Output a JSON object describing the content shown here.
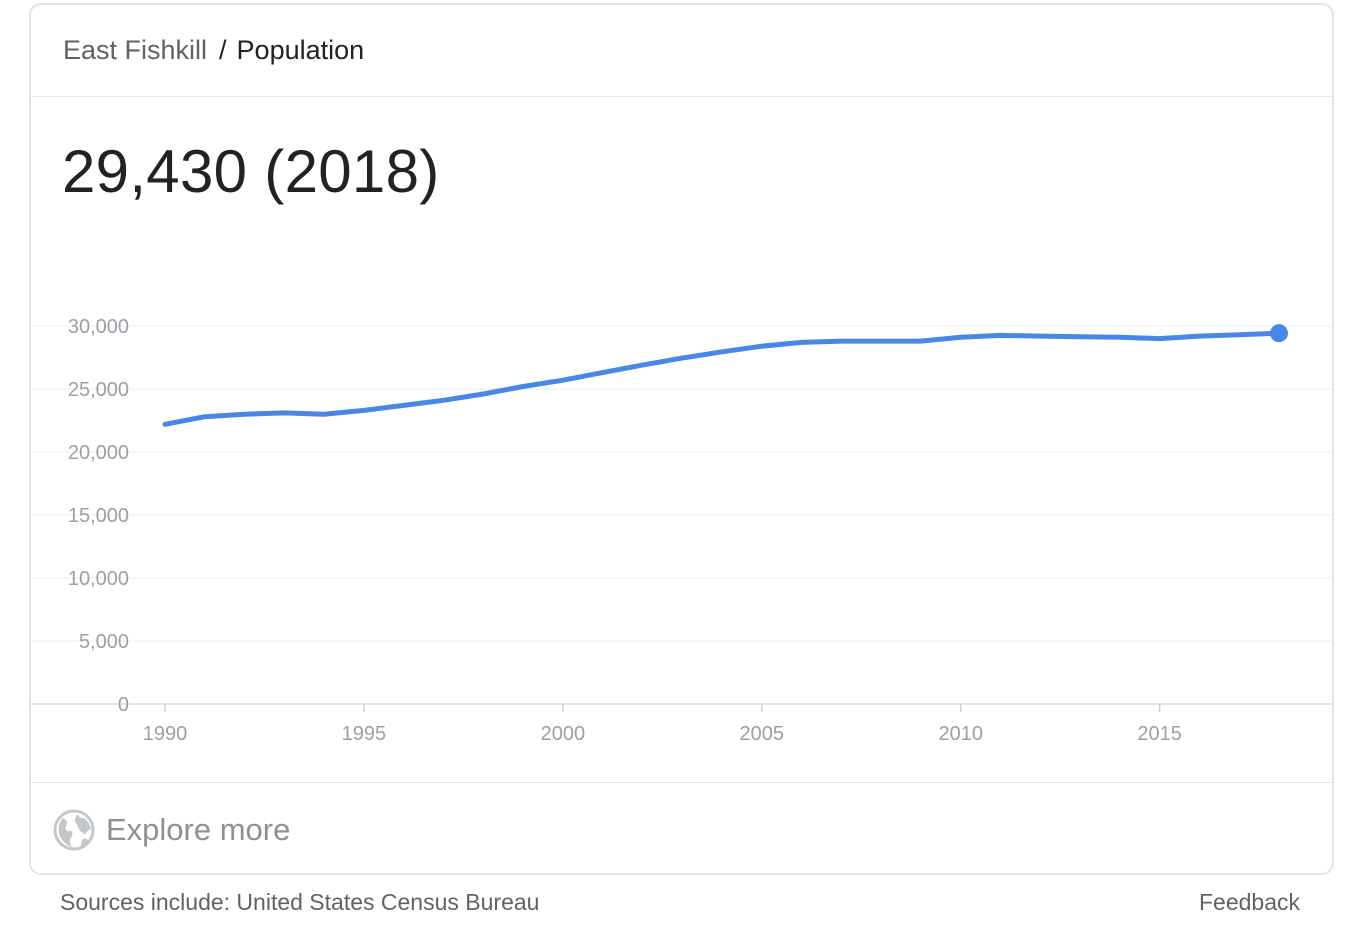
{
  "breadcrumb": {
    "place": "East Fishkill",
    "separator": "/",
    "topic": "Population"
  },
  "headline": "29,430 (2018)",
  "chart_data": {
    "type": "line",
    "title": "",
    "xlabel": "",
    "ylabel": "",
    "xlim": [
      1990,
      2018
    ],
    "ylim": [
      0,
      30000
    ],
    "x_ticks": [
      1990,
      1995,
      2000,
      2005,
      2010,
      2015
    ],
    "x_tick_labels": [
      "1990",
      "1995",
      "2000",
      "2005",
      "2010",
      "2015"
    ],
    "y_ticks": [
      0,
      5000,
      10000,
      15000,
      20000,
      25000,
      30000
    ],
    "y_tick_labels": [
      "0",
      "5,000",
      "10,000",
      "15,000",
      "20,000",
      "25,000",
      "30,000"
    ],
    "grid": true,
    "series": [
      {
        "color": "#4a86e8",
        "x": [
          1990,
          1991,
          1992,
          1993,
          1994,
          1995,
          1996,
          1997,
          1998,
          1999,
          2000,
          2001,
          2002,
          2003,
          2004,
          2005,
          2006,
          2007,
          2008,
          2009,
          2010,
          2011,
          2012,
          2013,
          2014,
          2015,
          2016,
          2017,
          2018
        ],
        "y": [
          22200,
          22800,
          23000,
          23100,
          23000,
          23300,
          23700,
          24100,
          24600,
          25200,
          25700,
          26300,
          26900,
          27450,
          27950,
          28400,
          28700,
          28800,
          28800,
          28800,
          29100,
          29250,
          29200,
          29150,
          29100,
          29000,
          29200,
          29300,
          29430
        ]
      }
    ]
  },
  "explore": {
    "label": "Explore more",
    "icon": "globe-icon"
  },
  "footer": {
    "sources": "Sources include: United States Census Bureau",
    "feedback": "Feedback"
  }
}
